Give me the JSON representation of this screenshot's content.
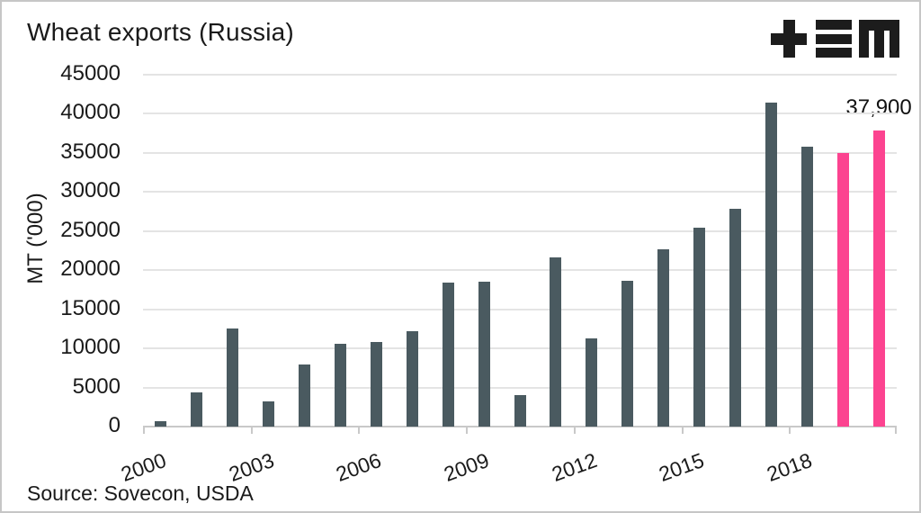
{
  "header": {
    "title": "Wheat exports (Russia)",
    "logo_glyphs": [
      "plus-icon",
      "triple-bar-icon",
      "m-icon"
    ]
  },
  "chart_data": {
    "type": "bar",
    "title": "Wheat exports (Russia)",
    "xlabel": "",
    "ylabel": "MT ('000)",
    "ylim": [
      0,
      45000
    ],
    "ytick_step": 5000,
    "yticks": [
      0,
      5000,
      10000,
      15000,
      20000,
      25000,
      30000,
      35000,
      40000,
      45000
    ],
    "grid": "horizontal",
    "legend": "none",
    "categories": [
      "2000",
      "2001",
      "2002",
      "2003",
      "2004",
      "2005",
      "2006",
      "2007",
      "2008",
      "2009",
      "2010",
      "2011",
      "2012",
      "2013",
      "2014",
      "2015",
      "2016",
      "2017",
      "2018",
      "2019",
      "2020"
    ],
    "values": [
      700,
      4400,
      12600,
      3200,
      7900,
      10600,
      10800,
      12200,
      18400,
      18500,
      4000,
      21600,
      11300,
      18600,
      22700,
      25400,
      27800,
      41400,
      35800,
      35000,
      37900
    ],
    "xtick_labels": [
      "2000",
      "2003",
      "2006",
      "2009",
      "2012",
      "2015",
      "2018"
    ],
    "xtick_positions": [
      0,
      3,
      6,
      9,
      12,
      15,
      18
    ],
    "bar_color": "#4a5a60",
    "highlight_color": "#fc4390",
    "highlight_indices": [
      19,
      20
    ],
    "annotation": {
      "text": "37,900",
      "bar_index": 20
    }
  },
  "footer": {
    "source": "Source: Sovecon, USDA"
  }
}
